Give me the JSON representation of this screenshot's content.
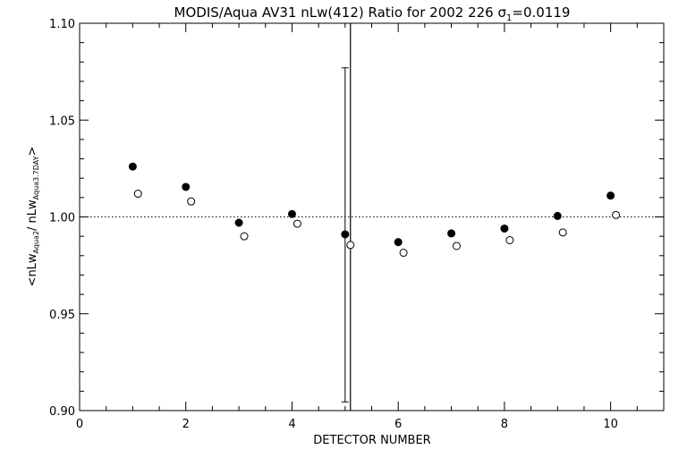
{
  "chart_data": {
    "type": "scatter",
    "title": "MODIS/Aqua AV31 nLw(412) Ratio for 2002 226 σ₁=0.0119",
    "xlabel": "DETECTOR NUMBER",
    "ylabel": "<nLw_Aqua2/nLw_Aqua3.7DAY>",
    "xlim": [
      0,
      11
    ],
    "ylim": [
      0.9,
      1.1
    ],
    "x_ticks": [
      0,
      2,
      4,
      6,
      8,
      10
    ],
    "y_ticks": [
      0.9,
      0.95,
      1.0,
      1.05,
      1.1
    ],
    "x_tick_labels": [
      "0",
      "2",
      "4",
      "6",
      "8",
      "10"
    ],
    "y_tick_labels": [
      "0.90",
      "0.95",
      "1.00",
      "1.05",
      "1.10"
    ],
    "reference_line": {
      "y": 1.0,
      "style": "dotted"
    },
    "series": [
      {
        "marker": "filled-circle",
        "x": [
          1,
          2,
          3,
          4,
          5,
          6,
          7,
          8,
          9,
          10
        ],
        "y": [
          1.026,
          1.0155,
          0.997,
          1.0015,
          0.991,
          0.987,
          0.9915,
          0.994,
          1.0005,
          1.011
        ]
      },
      {
        "marker": "open-circle",
        "x": [
          1.1,
          2.1,
          3.1,
          4.1,
          5.1,
          6.1,
          7.1,
          8.1,
          9.1,
          10.1
        ],
        "y": [
          1.012,
          1.008,
          0.99,
          0.9965,
          0.9855,
          0.9815,
          0.985,
          0.988,
          0.992,
          1.001
        ]
      }
    ],
    "error_bar": {
      "x": 5,
      "low": 0.9045,
      "high": 1.077
    },
    "vertical_line": {
      "x": 5.1
    }
  }
}
